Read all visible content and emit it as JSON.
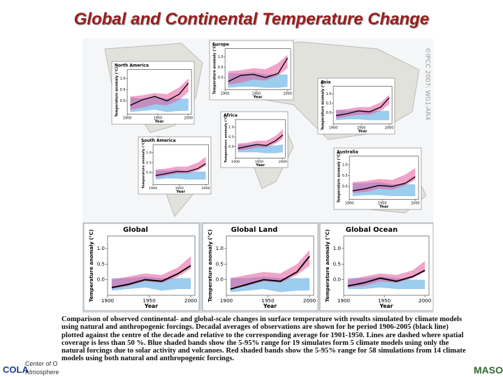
{
  "title": "Global and Continental Temperature Change",
  "watermark": "©IPCC 2007: WG1-AR4",
  "caption": "Comparison of observed continental- and global-scale changes in surface temperature with results simulated by climate models using natural and anthropogenic forcings. Decadal averages of observations are shown for he period 1906-2005 (black line) plotted against the centre of the decade and relative to the corresponding average for 1901-1950. Lines are dashed where spatial coverage is less than 50 %. Blue shaded bands show the 5-95% range for 19 simulates form 5 climate models using only the natural forcings due to solar activity and volcanoes. Red shaded bands show the 5-95% range for 58 simulations from 14 climate models using both natural and anthropogenic forcings.",
  "footer": {
    "cola": "COLA",
    "center_line1": "Center of O",
    "center_line2": "Atmosphere",
    "mason": "MASON"
  },
  "chart_data": [
    {
      "type": "band-line",
      "title": "North America",
      "xlabel": "Year",
      "ylabel": "Temperature anomaly (°C)",
      "x": [
        1905,
        1925,
        1945,
        1965,
        1985,
        2000
      ],
      "xlim": [
        1900,
        2005
      ],
      "xticks": [
        1900,
        1950,
        2000
      ],
      "ylim": [
        -0.6,
        1.4
      ],
      "yticks": [
        {
          "value": 0.0,
          "label": "0.0"
        },
        0.5,
        {
          "value": 1.0,
          "label": "1.0"
        }
      ],
      "series": [
        {
          "color": "#4aa3e0",
          "low": [
            -0.5,
            -0.45,
            -0.4,
            -0.5,
            -0.45,
            -0.45
          ],
          "high": [
            0.15,
            0.1,
            0.2,
            0.1,
            0.1,
            0.1
          ]
        },
        {
          "color": "#e6589c",
          "low": [
            -0.4,
            -0.3,
            -0.15,
            -0.2,
            0.05,
            0.4
          ],
          "high": [
            0.2,
            0.25,
            0.35,
            0.3,
            0.6,
            1.0
          ]
        },
        {
          "color": "#000000",
          "values": [
            -0.2,
            0.05,
            0.2,
            0.0,
            0.3,
            0.8
          ]
        }
      ]
    },
    {
      "type": "band-line",
      "title": "Europe",
      "xlabel": "Year",
      "ylabel": "Temperature anomaly (°C)",
      "x": [
        1905,
        1925,
        1945,
        1965,
        1985,
        2000
      ],
      "xlim": [
        1900,
        2005
      ],
      "xticks": [
        1900,
        1950,
        2000
      ],
      "ylim": [
        -0.6,
        1.4
      ],
      "yticks": [
        {
          "value": 0.0,
          "label": "0.0"
        },
        0.5,
        {
          "value": 1.0,
          "label": "1.0"
        }
      ],
      "series": [
        {
          "color": "#4aa3e0",
          "low": [
            -0.5,
            -0.45,
            -0.45,
            -0.5,
            -0.5,
            -0.45
          ],
          "high": [
            0.2,
            0.2,
            0.25,
            0.15,
            0.15,
            0.15
          ]
        },
        {
          "color": "#e6589c",
          "low": [
            -0.35,
            -0.25,
            -0.1,
            -0.15,
            0.1,
            0.45
          ],
          "high": [
            0.3,
            0.35,
            0.45,
            0.4,
            0.7,
            1.1
          ]
        },
        {
          "color": "#000000",
          "values": [
            -0.2,
            0.1,
            0.15,
            0.0,
            0.2,
            0.95
          ]
        }
      ]
    },
    {
      "type": "band-line",
      "title": "Asia",
      "xlabel": "Year",
      "ylabel": "Temperature anomaly (°C)",
      "x": [
        1905,
        1925,
        1945,
        1965,
        1985,
        2000
      ],
      "xlim": [
        1900,
        2005
      ],
      "xticks": [
        1900,
        1950,
        2000
      ],
      "ylim": [
        -0.6,
        1.4
      ],
      "yticks": [
        {
          "value": 0.0,
          "label": "0.0"
        },
        0.5,
        {
          "value": 1.0,
          "label": "1.0"
        }
      ],
      "series": [
        {
          "color": "#4aa3e0",
          "low": [
            -0.4,
            -0.35,
            -0.35,
            -0.4,
            -0.4,
            -0.4
          ],
          "high": [
            0.15,
            0.1,
            0.15,
            0.1,
            0.1,
            0.1
          ]
        },
        {
          "color": "#e6589c",
          "low": [
            -0.3,
            -0.2,
            -0.1,
            -0.1,
            0.1,
            0.45
          ],
          "high": [
            0.15,
            0.2,
            0.3,
            0.3,
            0.55,
            0.95
          ]
        },
        {
          "color": "#000000",
          "values": [
            -0.15,
            -0.05,
            0.1,
            0.05,
            0.3,
            0.8
          ]
        }
      ]
    },
    {
      "type": "band-line",
      "title": "Africa",
      "xlabel": "Year",
      "ylabel": "Temperature anomaly (°C)",
      "x": [
        1905,
        1925,
        1945,
        1965,
        1985,
        2000
      ],
      "xlim": [
        1900,
        2005
      ],
      "xticks": [
        1900,
        1950,
        2000
      ],
      "ylim": [
        -0.6,
        1.4
      ],
      "yticks": [
        {
          "value": 0.0,
          "label": "0.0"
        },
        0.5,
        {
          "value": 1.0,
          "label": "1.0"
        }
      ],
      "series": [
        {
          "color": "#4aa3e0",
          "low": [
            -0.3,
            -0.3,
            -0.3,
            -0.35,
            -0.35,
            -0.3
          ],
          "high": [
            0.1,
            0.1,
            0.15,
            0.05,
            0.05,
            0.1
          ]
        },
        {
          "color": "#e6589c",
          "low": [
            -0.2,
            -0.15,
            -0.05,
            -0.05,
            0.15,
            0.4
          ],
          "high": [
            0.15,
            0.2,
            0.3,
            0.3,
            0.55,
            0.9
          ]
        },
        {
          "color": "#000000",
          "values": [
            -0.1,
            0.0,
            0.1,
            0.05,
            0.3,
            0.6
          ]
        }
      ]
    },
    {
      "type": "band-line",
      "title": "South America",
      "xlabel": "Year",
      "ylabel": "Temperature anomaly (°C)",
      "x": [
        1905,
        1925,
        1945,
        1965,
        1985,
        2000
      ],
      "xlim": [
        1900,
        2005
      ],
      "xticks": [
        1900,
        1950,
        2000
      ],
      "ylim": [
        -0.6,
        1.4
      ],
      "yticks": [
        {
          "value": 0.0,
          "label": "0.0"
        },
        0.5,
        {
          "value": 1.0,
          "label": "1.0"
        }
      ],
      "series": [
        {
          "color": "#4aa3e0",
          "low": [
            -0.35,
            -0.3,
            -0.3,
            -0.35,
            -0.35,
            -0.35
          ],
          "high": [
            0.1,
            0.1,
            0.15,
            0.05,
            0.05,
            0.05
          ]
        },
        {
          "color": "#e6589c",
          "low": [
            -0.25,
            -0.15,
            -0.05,
            -0.05,
            0.1,
            0.35
          ],
          "high": [
            0.15,
            0.2,
            0.3,
            0.3,
            0.5,
            0.8
          ]
        },
        {
          "color": "#000000",
          "values": [
            -0.15,
            -0.05,
            0.05,
            0.05,
            0.2,
            0.45
          ]
        }
      ]
    },
    {
      "type": "band-line",
      "title": "Australia",
      "xlabel": "Year",
      "ylabel": "Temperature anomaly (°C)",
      "x": [
        1905,
        1925,
        1945,
        1965,
        1985,
        2000
      ],
      "xlim": [
        1900,
        2005
      ],
      "xticks": [
        1900,
        1950,
        2000
      ],
      "ylim": [
        -0.6,
        1.4
      ],
      "yticks": [
        {
          "value": 0.0,
          "label": "0.0"
        },
        0.5,
        {
          "value": 1.0,
          "label": "1.0"
        }
      ],
      "series": [
        {
          "color": "#4aa3e0",
          "low": [
            -0.45,
            -0.4,
            -0.4,
            -0.45,
            -0.45,
            -0.45
          ],
          "high": [
            0.15,
            0.15,
            0.2,
            0.1,
            0.1,
            0.1
          ]
        },
        {
          "color": "#e6589c",
          "low": [
            -0.3,
            -0.25,
            -0.1,
            -0.15,
            0.05,
            0.3
          ],
          "high": [
            0.2,
            0.25,
            0.35,
            0.3,
            0.55,
            0.85
          ]
        },
        {
          "color": "#000000",
          "values": [
            -0.2,
            -0.1,
            0.05,
            0.0,
            0.15,
            0.45
          ]
        }
      ]
    },
    {
      "type": "band-line",
      "title": "Global",
      "xlabel": "Year",
      "ylabel": "Temperature anomaly (°C)",
      "x": [
        1905,
        1925,
        1945,
        1965,
        1985,
        2000
      ],
      "xlim": [
        1900,
        2005
      ],
      "xticks": [
        1900,
        1950,
        2000
      ],
      "ylim": [
        -0.5,
        1.4
      ],
      "yticks": [
        {
          "value": 0.0,
          "label": "0.0"
        },
        0.5,
        {
          "value": 1.0,
          "label": "1.0"
        }
      ],
      "series": [
        {
          "color": "#4aa3e0",
          "low": [
            -0.35,
            -0.3,
            -0.25,
            -0.35,
            -0.3,
            -0.3
          ],
          "high": [
            0.05,
            0.05,
            0.1,
            0.05,
            0.05,
            0.05
          ]
        },
        {
          "color": "#e6589c",
          "low": [
            -0.3,
            -0.2,
            -0.05,
            -0.1,
            0.1,
            0.35
          ],
          "high": [
            0.0,
            0.1,
            0.2,
            0.15,
            0.4,
            0.75
          ]
        },
        {
          "color": "#000000",
          "values": [
            -0.25,
            -0.15,
            0.0,
            -0.05,
            0.2,
            0.45
          ]
        }
      ]
    },
    {
      "type": "band-line",
      "title": "Global Land",
      "xlabel": "Year",
      "ylabel": "Temperature anomaly (°C)",
      "x": [
        1905,
        1925,
        1945,
        1965,
        1985,
        2000
      ],
      "xlim": [
        1900,
        2005
      ],
      "xticks": [
        1900,
        1950,
        2000
      ],
      "ylim": [
        -0.5,
        1.4
      ],
      "yticks": [
        {
          "value": 0.0,
          "label": "0.0"
        },
        0.5,
        {
          "value": 1.0,
          "label": "1.0"
        }
      ],
      "series": [
        {
          "color": "#4aa3e0",
          "low": [
            -0.4,
            -0.35,
            -0.3,
            -0.4,
            -0.35,
            -0.35
          ],
          "high": [
            0.05,
            0.05,
            0.1,
            0.05,
            0.05,
            0.05
          ]
        },
        {
          "color": "#e6589c",
          "low": [
            -0.3,
            -0.2,
            -0.05,
            -0.1,
            0.15,
            0.45
          ],
          "high": [
            0.05,
            0.15,
            0.25,
            0.2,
            0.5,
            0.95
          ]
        },
        {
          "color": "#000000",
          "values": [
            -0.3,
            -0.15,
            0.0,
            -0.05,
            0.25,
            0.75
          ]
        }
      ]
    },
    {
      "type": "band-line",
      "title": "Global Ocean",
      "xlabel": "Year",
      "ylabel": "Temperature anomaly (°C)",
      "x": [
        1905,
        1925,
        1945,
        1965,
        1985,
        2000
      ],
      "xlim": [
        1900,
        2005
      ],
      "xticks": [
        1900,
        1950,
        2000
      ],
      "ylim": [
        -0.5,
        1.4
      ],
      "yticks": [
        {
          "value": 0.0,
          "label": "0.0"
        },
        0.5,
        {
          "value": 1.0,
          "label": "1.0"
        }
      ],
      "series": [
        {
          "color": "#4aa3e0",
          "low": [
            -0.3,
            -0.3,
            -0.25,
            -0.3,
            -0.3,
            -0.3
          ],
          "high": [
            0.05,
            0.05,
            0.1,
            0.05,
            0.0,
            0.0
          ]
        },
        {
          "color": "#e6589c",
          "low": [
            -0.25,
            -0.2,
            -0.05,
            -0.1,
            0.05,
            0.25
          ],
          "high": [
            0.0,
            0.1,
            0.2,
            0.15,
            0.3,
            0.6
          ]
        },
        {
          "color": "#000000",
          "values": [
            -0.2,
            -0.1,
            0.05,
            -0.05,
            0.1,
            0.3
          ]
        }
      ]
    }
  ]
}
